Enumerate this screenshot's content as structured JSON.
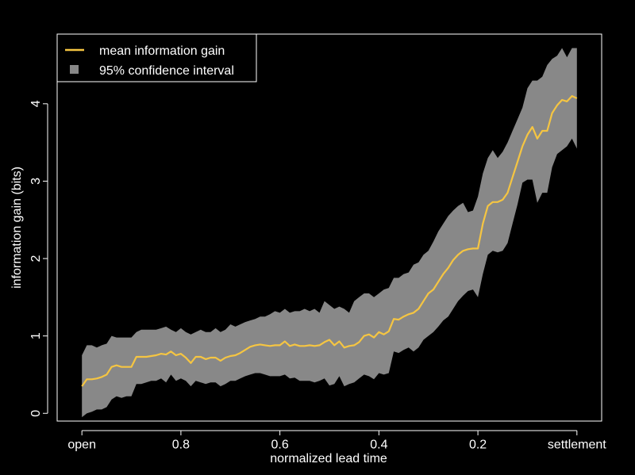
{
  "chart_data": {
    "type": "line",
    "title": "",
    "xlabel": "normalized lead time",
    "ylabel": "information gain (bits)",
    "x_reversed": true,
    "xlim": [
      1.05,
      -0.05
    ],
    "ylim": [
      -0.1,
      4.9
    ],
    "x_ticks": [
      {
        "value": 1.0,
        "label": "open"
      },
      {
        "value": 0.8,
        "label": "0.8"
      },
      {
        "value": 0.6,
        "label": "0.6"
      },
      {
        "value": 0.4,
        "label": "0.4"
      },
      {
        "value": 0.2,
        "label": "0.2"
      },
      {
        "value": 0.0,
        "label": "settlement"
      }
    ],
    "y_ticks": [
      {
        "value": 0,
        "label": "0"
      },
      {
        "value": 1,
        "label": "1"
      },
      {
        "value": 2,
        "label": "2"
      },
      {
        "value": 3,
        "label": "3"
      },
      {
        "value": 4,
        "label": "4"
      }
    ],
    "grid": false,
    "legend_position": "top-left",
    "series": [
      {
        "name": "mean information gain",
        "color": "#f5c542",
        "x": [
          1.0,
          0.99,
          0.98,
          0.97,
          0.96,
          0.95,
          0.94,
          0.93,
          0.92,
          0.91,
          0.9,
          0.89,
          0.88,
          0.87,
          0.86,
          0.85,
          0.84,
          0.83,
          0.82,
          0.81,
          0.8,
          0.79,
          0.78,
          0.77,
          0.76,
          0.75,
          0.74,
          0.73,
          0.72,
          0.71,
          0.7,
          0.69,
          0.68,
          0.67,
          0.66,
          0.65,
          0.64,
          0.63,
          0.62,
          0.61,
          0.6,
          0.59,
          0.58,
          0.57,
          0.56,
          0.55,
          0.54,
          0.53,
          0.52,
          0.51,
          0.5,
          0.49,
          0.48,
          0.47,
          0.46,
          0.45,
          0.44,
          0.43,
          0.42,
          0.41,
          0.4,
          0.39,
          0.38,
          0.37,
          0.36,
          0.35,
          0.34,
          0.33,
          0.32,
          0.31,
          0.3,
          0.29,
          0.28,
          0.27,
          0.26,
          0.25,
          0.24,
          0.23,
          0.22,
          0.21,
          0.2,
          0.19,
          0.18,
          0.17,
          0.16,
          0.15,
          0.14,
          0.13,
          0.12,
          0.11,
          0.1,
          0.09,
          0.08,
          0.07,
          0.06,
          0.05,
          0.04,
          0.03,
          0.02,
          0.01,
          0.0
        ],
        "values": [
          0.35,
          0.44,
          0.44,
          0.45,
          0.47,
          0.5,
          0.6,
          0.62,
          0.6,
          0.6,
          0.6,
          0.73,
          0.73,
          0.73,
          0.74,
          0.75,
          0.77,
          0.76,
          0.8,
          0.75,
          0.77,
          0.72,
          0.65,
          0.73,
          0.73,
          0.7,
          0.72,
          0.72,
          0.68,
          0.72,
          0.74,
          0.75,
          0.78,
          0.82,
          0.86,
          0.88,
          0.89,
          0.88,
          0.87,
          0.88,
          0.88,
          0.93,
          0.87,
          0.89,
          0.87,
          0.87,
          0.88,
          0.87,
          0.88,
          0.92,
          0.95,
          0.88,
          0.93,
          0.85,
          0.87,
          0.88,
          0.92,
          1.0,
          1.02,
          0.98,
          1.05,
          1.02,
          1.06,
          1.22,
          1.21,
          1.25,
          1.28,
          1.3,
          1.35,
          1.45,
          1.55,
          1.6,
          1.7,
          1.8,
          1.88,
          1.98,
          2.05,
          2.1,
          2.12,
          2.13,
          2.13,
          2.45,
          2.68,
          2.73,
          2.73,
          2.76,
          2.85,
          3.05,
          3.25,
          3.45,
          3.6,
          3.7,
          3.55,
          3.65,
          3.65,
          3.88,
          3.98,
          4.05,
          4.03,
          4.1,
          4.07
        ]
      },
      {
        "name": "95% confidence interval",
        "color": "#888888",
        "type": "band",
        "x": [
          1.0,
          0.99,
          0.98,
          0.97,
          0.96,
          0.95,
          0.94,
          0.93,
          0.92,
          0.91,
          0.9,
          0.89,
          0.88,
          0.87,
          0.86,
          0.85,
          0.84,
          0.83,
          0.82,
          0.81,
          0.8,
          0.79,
          0.78,
          0.77,
          0.76,
          0.75,
          0.74,
          0.73,
          0.72,
          0.71,
          0.7,
          0.69,
          0.68,
          0.67,
          0.66,
          0.65,
          0.64,
          0.63,
          0.62,
          0.61,
          0.6,
          0.59,
          0.58,
          0.57,
          0.56,
          0.55,
          0.54,
          0.53,
          0.52,
          0.51,
          0.5,
          0.49,
          0.48,
          0.47,
          0.46,
          0.45,
          0.44,
          0.43,
          0.42,
          0.41,
          0.4,
          0.39,
          0.38,
          0.37,
          0.36,
          0.35,
          0.34,
          0.33,
          0.32,
          0.31,
          0.3,
          0.29,
          0.28,
          0.27,
          0.26,
          0.25,
          0.24,
          0.23,
          0.22,
          0.21,
          0.2,
          0.19,
          0.18,
          0.17,
          0.16,
          0.15,
          0.14,
          0.13,
          0.12,
          0.11,
          0.1,
          0.09,
          0.08,
          0.07,
          0.06,
          0.05,
          0.04,
          0.03,
          0.02,
          0.01,
          0.0
        ],
        "upper": [
          0.75,
          0.88,
          0.88,
          0.85,
          0.88,
          0.9,
          1.0,
          0.98,
          0.98,
          0.98,
          0.98,
          1.05,
          1.08,
          1.08,
          1.08,
          1.08,
          1.1,
          1.12,
          1.08,
          1.05,
          1.1,
          1.05,
          1.02,
          1.05,
          1.08,
          1.05,
          1.05,
          1.1,
          1.05,
          1.08,
          1.15,
          1.12,
          1.15,
          1.18,
          1.2,
          1.22,
          1.25,
          1.25,
          1.28,
          1.32,
          1.3,
          1.35,
          1.3,
          1.32,
          1.32,
          1.35,
          1.32,
          1.35,
          1.3,
          1.45,
          1.4,
          1.35,
          1.38,
          1.35,
          1.3,
          1.45,
          1.5,
          1.55,
          1.55,
          1.5,
          1.55,
          1.6,
          1.62,
          1.75,
          1.75,
          1.8,
          1.82,
          1.92,
          1.95,
          2.05,
          2.1,
          2.22,
          2.35,
          2.45,
          2.55,
          2.62,
          2.68,
          2.72,
          2.6,
          2.62,
          2.8,
          3.1,
          3.3,
          3.4,
          3.3,
          3.38,
          3.5,
          3.65,
          3.8,
          3.95,
          4.2,
          4.3,
          4.3,
          4.35,
          4.5,
          4.58,
          4.62,
          4.72,
          4.6,
          4.72,
          4.72
        ],
        "lower": [
          -0.05,
          0.0,
          0.02,
          0.05,
          0.05,
          0.08,
          0.18,
          0.22,
          0.2,
          0.22,
          0.22,
          0.38,
          0.38,
          0.4,
          0.42,
          0.42,
          0.45,
          0.4,
          0.5,
          0.42,
          0.45,
          0.42,
          0.35,
          0.42,
          0.4,
          0.38,
          0.4,
          0.4,
          0.35,
          0.38,
          0.42,
          0.42,
          0.45,
          0.48,
          0.5,
          0.52,
          0.52,
          0.5,
          0.48,
          0.48,
          0.48,
          0.5,
          0.45,
          0.46,
          0.42,
          0.42,
          0.42,
          0.4,
          0.42,
          0.45,
          0.36,
          0.38,
          0.48,
          0.35,
          0.38,
          0.4,
          0.45,
          0.5,
          0.48,
          0.44,
          0.52,
          0.5,
          0.52,
          0.8,
          0.78,
          0.82,
          0.85,
          0.8,
          0.85,
          0.95,
          1.0,
          1.05,
          1.12,
          1.2,
          1.25,
          1.35,
          1.45,
          1.52,
          1.58,
          1.6,
          1.5,
          1.8,
          2.05,
          2.1,
          2.08,
          2.1,
          2.2,
          2.45,
          2.7,
          2.98,
          3.02,
          3.02,
          2.72,
          2.85,
          2.85,
          3.18,
          3.35,
          3.4,
          3.45,
          3.55,
          3.42
        ]
      }
    ]
  }
}
